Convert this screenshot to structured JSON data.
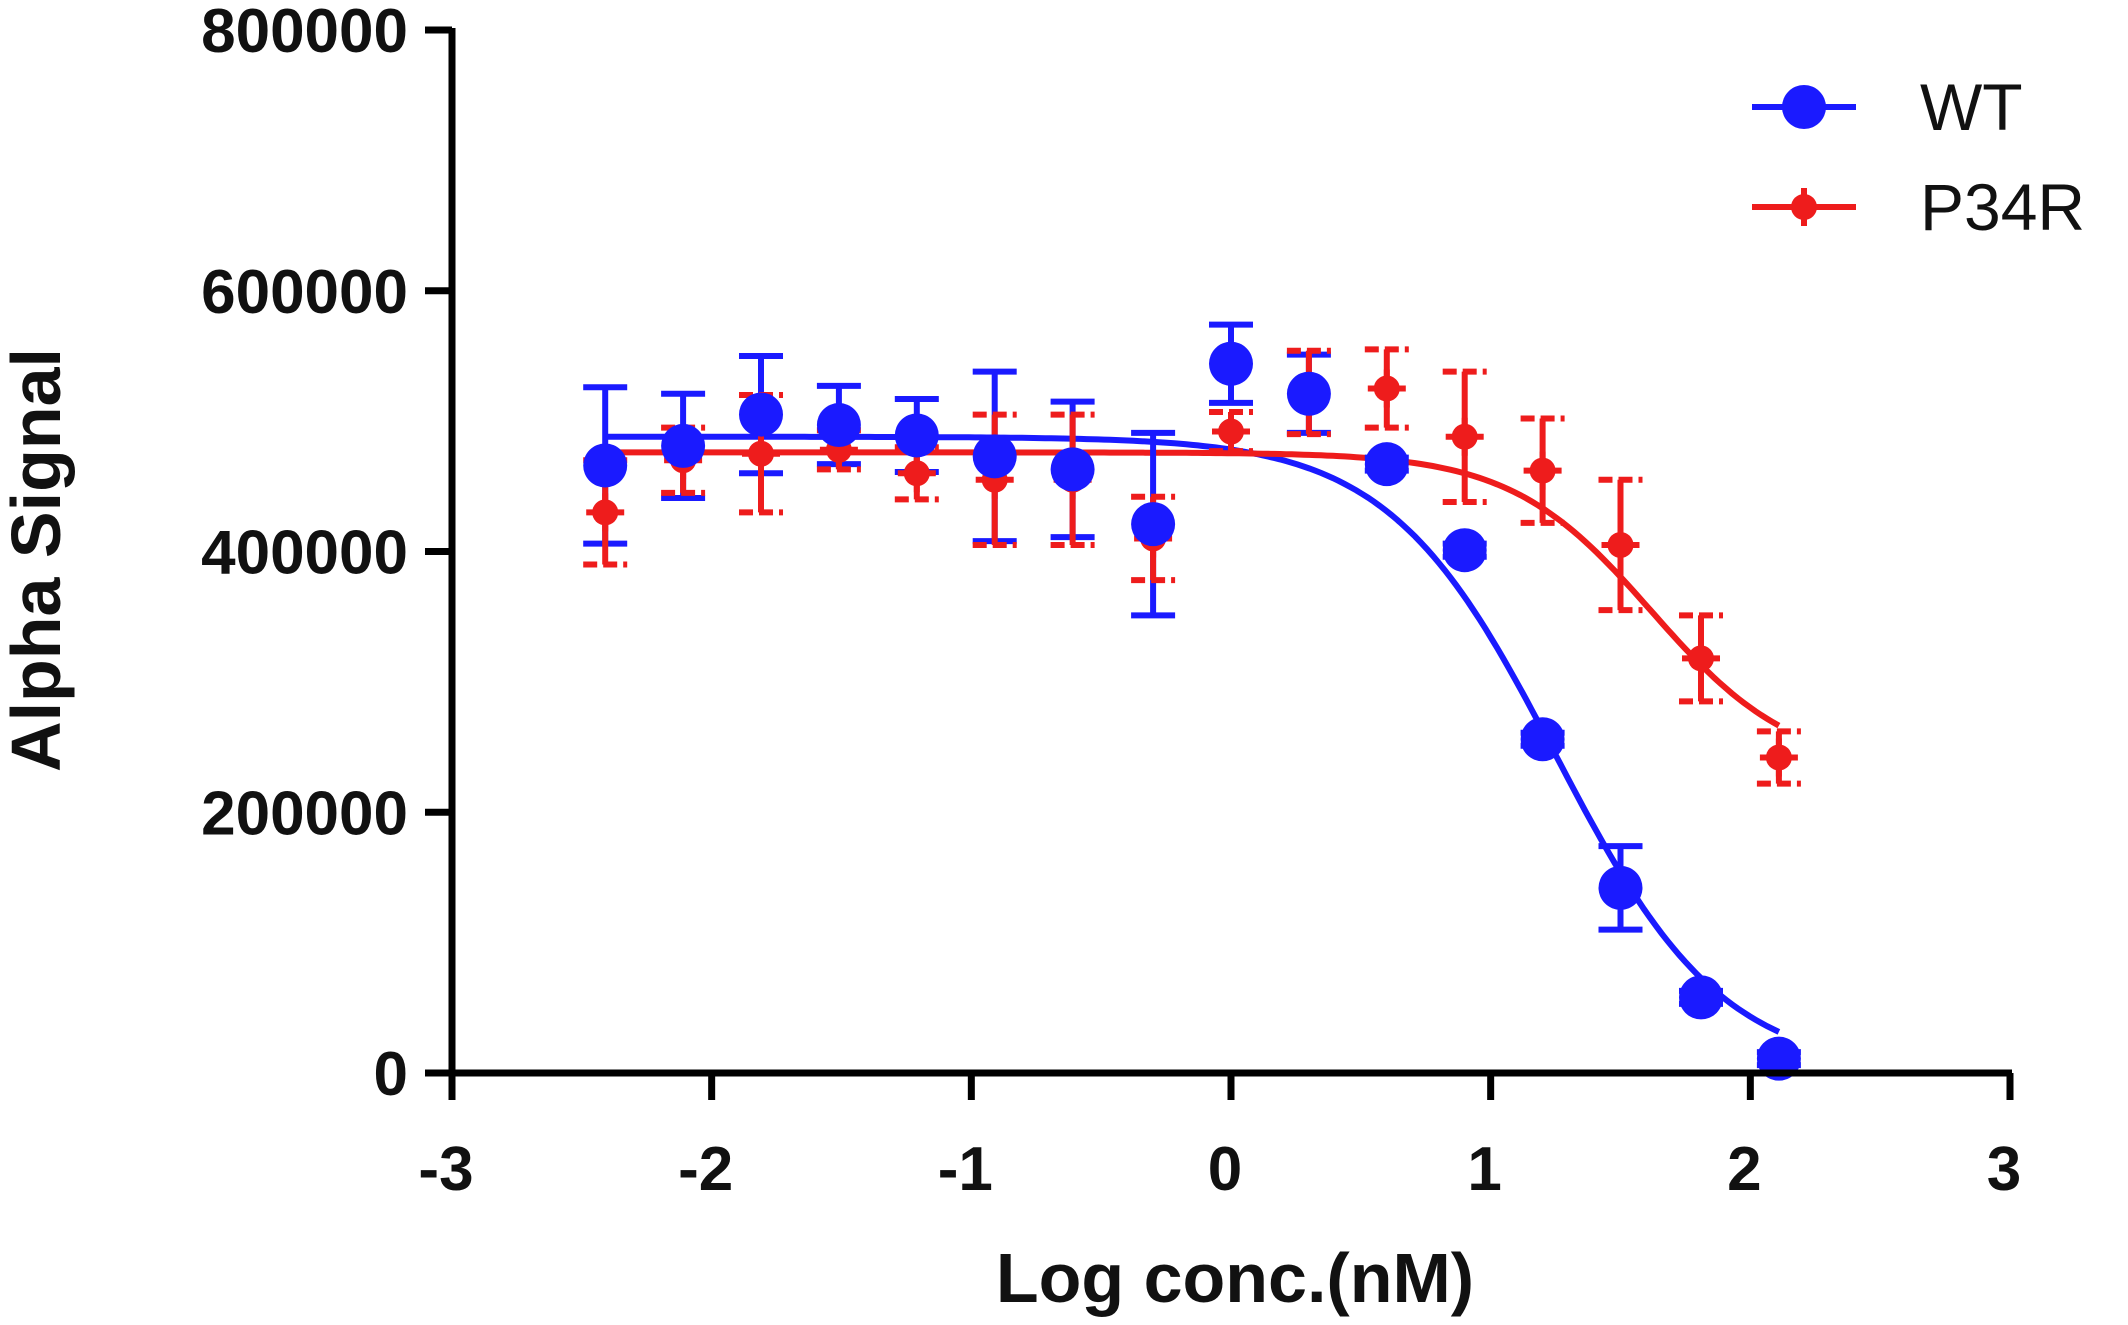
{
  "chart_data": {
    "type": "scatter",
    "title": "",
    "xlabel": "Log conc.(nM)",
    "ylabel": "Alpha Signal",
    "xlim": [
      -3,
      3
    ],
    "ylim": [
      0,
      800000
    ],
    "xticks": [
      -3,
      -2,
      -1,
      0,
      1,
      2,
      3
    ],
    "xtick_labels": [
      "-3",
      "-2",
      "-1",
      "0",
      "1",
      "2",
      "3"
    ],
    "yticks": [
      0,
      200000,
      400000,
      600000,
      800000
    ],
    "ytick_labels": [
      "0",
      "200000",
      "400000",
      "600000",
      "800000"
    ],
    "grid": false,
    "legend_position": "top-right",
    "series": [
      {
        "name": "WT",
        "color": "#1a1aff",
        "marker": "circle",
        "x": [
          -2.41,
          -2.11,
          -1.81,
          -1.51,
          -1.21,
          -0.91,
          -0.61,
          -0.3,
          0.0,
          0.3,
          0.6,
          0.9,
          1.2,
          1.5,
          1.81,
          2.11
        ],
        "y": [
          466000,
          481000,
          505000,
          497000,
          489000,
          473000,
          463000,
          421000,
          544000,
          521000,
          467000,
          401000,
          256000,
          142000,
          58000,
          11000
        ],
        "error": [
          60000,
          40000,
          45000,
          30000,
          28000,
          65000,
          52000,
          70000,
          30000,
          30000,
          5000,
          5000,
          5000,
          32000,
          5000,
          5000
        ],
        "fit": {
          "top": 488000,
          "bottom": 0,
          "logIC50": 1.25,
          "hill": -1.35
        }
      },
      {
        "name": "P34R",
        "color": "#ee1c1c",
        "marker": "diamond",
        "x": [
          -2.41,
          -2.11,
          -1.81,
          -1.51,
          -1.21,
          -0.91,
          -0.61,
          -0.3,
          0.0,
          0.3,
          0.6,
          0.9,
          1.2,
          1.5,
          1.81,
          2.11
        ],
        "y": [
          430000,
          470000,
          475000,
          478000,
          460000,
          455000,
          455000,
          410000,
          492000,
          522000,
          525000,
          488000,
          462000,
          405000,
          318000,
          242000
        ],
        "error": [
          40000,
          25000,
          45000,
          15000,
          20000,
          50000,
          50000,
          32000,
          15000,
          32000,
          30000,
          50000,
          40000,
          50000,
          33000,
          20000
        ],
        "fit": {
          "top": 476000,
          "bottom": 232000,
          "logIC50": 1.62,
          "hill": -1.6
        }
      }
    ]
  }
}
